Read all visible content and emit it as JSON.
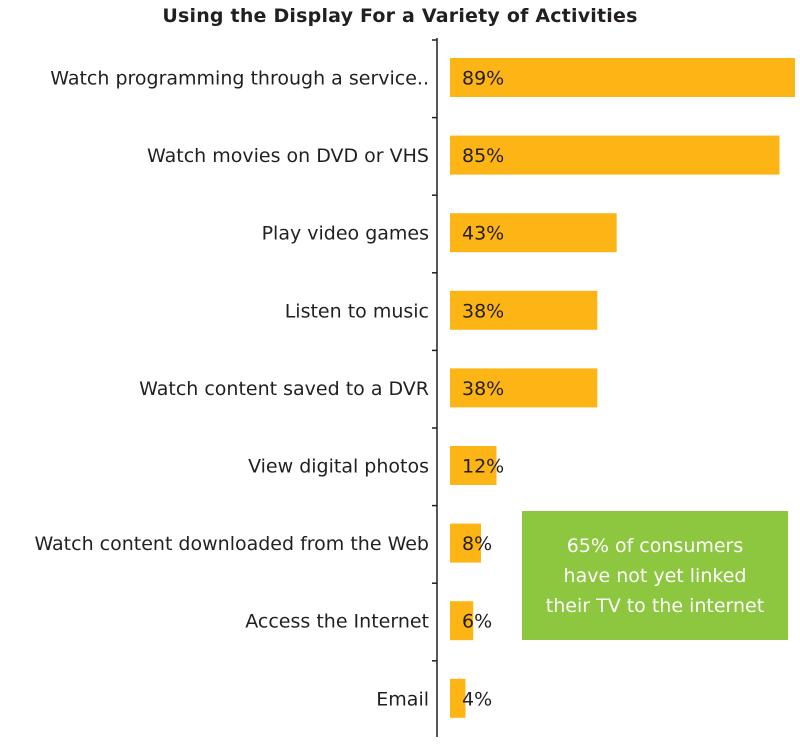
{
  "chart_data": {
    "type": "bar",
    "orientation": "horizontal",
    "title": "Using the Display For a Variety of Activities",
    "categories": [
      "Watch programming through a service..",
      "Watch movies on DVD or VHS",
      "Play video games",
      "Listen to music",
      "Watch content saved to a DVR",
      "View digital photos",
      "Watch content downloaded from the Web",
      "Access the Internet",
      "Email"
    ],
    "values": [
      89,
      85,
      43,
      38,
      38,
      12,
      8,
      6,
      4
    ],
    "value_labels": [
      "89%",
      "85%",
      "43%",
      "38%",
      "38%",
      "12%",
      "8%",
      "6%",
      "4%"
    ],
    "unit": "%",
    "xlim": [
      0,
      89
    ],
    "grid": false,
    "bar_color": "#fdb515",
    "axis_color": "#231f20"
  },
  "callout": {
    "text": "65% of consumers\nhave not yet linked\ntheir TV to the internet",
    "background": "#8dc63f",
    "text_color": "#ffffff"
  }
}
